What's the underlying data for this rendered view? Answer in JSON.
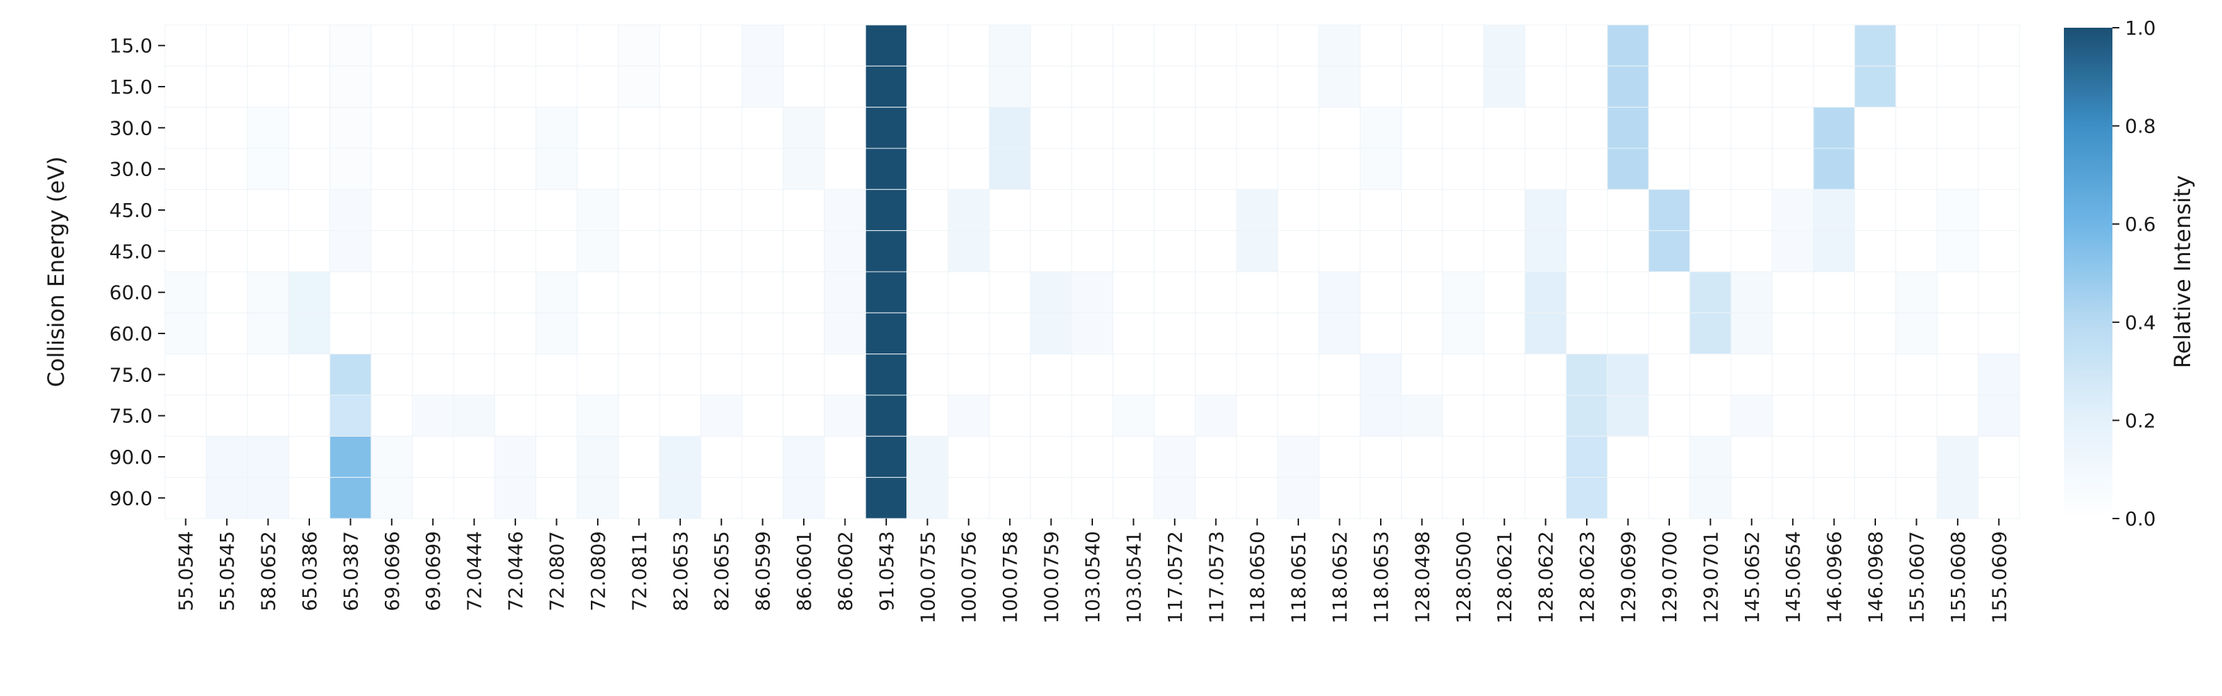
{
  "chart_data": {
    "type": "heatmap",
    "title": "",
    "xlabel": "",
    "ylabel": "Collision Energy (eV)",
    "colorbar_label": "Relative Intensity",
    "colorbar_ticks": [
      "0.0",
      "0.2",
      "0.4",
      "0.6",
      "0.8",
      "1.0"
    ],
    "value_range": [
      0,
      1
    ],
    "colors": {
      "low": "#ffffff",
      "mid": "#7fbfe6",
      "high": "#1b4f72",
      "grid": "#eef3f7"
    },
    "y_categories": [
      "15.0",
      "15.0",
      "30.0",
      "30.0",
      "45.0",
      "45.0",
      "60.0",
      "60.0",
      "75.0",
      "75.0",
      "90.0",
      "90.0"
    ],
    "x_categories": [
      "55.0544",
      "55.0545",
      "58.0652",
      "65.0386",
      "65.0387",
      "69.0696",
      "69.0699",
      "72.0444",
      "72.0446",
      "72.0807",
      "72.0809",
      "72.0811",
      "82.0653",
      "82.0655",
      "86.0599",
      "86.0601",
      "86.0602",
      "91.0543",
      "100.0755",
      "100.0756",
      "100.0758",
      "100.0759",
      "103.0540",
      "103.0541",
      "117.0572",
      "117.0573",
      "118.0650",
      "118.0651",
      "118.0652",
      "118.0653",
      "128.0498",
      "128.0500",
      "128.0621",
      "128.0622",
      "128.0623",
      "129.0699",
      "129.0700",
      "129.0701",
      "145.0652",
      "145.0654",
      "146.0966",
      "146.0968",
      "155.0607",
      "155.0608",
      "155.0609"
    ],
    "values": [
      [
        0,
        0,
        0,
        0,
        0.04,
        0,
        0,
        0,
        0,
        0,
        0,
        0.04,
        0,
        0,
        0.07,
        0,
        0,
        1.0,
        0,
        0,
        0.08,
        0,
        0,
        0,
        0,
        0,
        0,
        0,
        0.08,
        0,
        0,
        0,
        0.12,
        0,
        0,
        0.4,
        0,
        0,
        0,
        0,
        0,
        0.35,
        0,
        0,
        0
      ],
      [
        0,
        0,
        0,
        0,
        0.04,
        0,
        0,
        0,
        0,
        0,
        0,
        0.04,
        0,
        0,
        0.07,
        0,
        0,
        1.0,
        0,
        0,
        0.08,
        0,
        0,
        0,
        0,
        0,
        0,
        0,
        0.08,
        0,
        0,
        0,
        0.12,
        0,
        0,
        0.4,
        0,
        0,
        0,
        0,
        0,
        0.35,
        0,
        0,
        0
      ],
      [
        0,
        0,
        0.05,
        0,
        0.04,
        0,
        0,
        0,
        0,
        0.06,
        0,
        0,
        0,
        0,
        0,
        0.08,
        0,
        1.0,
        0,
        0,
        0.2,
        0,
        0,
        0,
        0,
        0,
        0,
        0,
        0,
        0.06,
        0,
        0,
        0,
        0,
        0,
        0.4,
        0,
        0,
        0,
        0,
        0.4,
        0,
        0,
        0,
        0
      ],
      [
        0,
        0,
        0.05,
        0,
        0.04,
        0,
        0,
        0,
        0,
        0.06,
        0,
        0,
        0,
        0,
        0,
        0.08,
        0,
        1.0,
        0,
        0,
        0.2,
        0,
        0,
        0,
        0,
        0,
        0,
        0,
        0,
        0.06,
        0,
        0,
        0,
        0,
        0,
        0.4,
        0,
        0,
        0,
        0,
        0.4,
        0,
        0,
        0,
        0
      ],
      [
        0,
        0,
        0,
        0,
        0.07,
        0,
        0,
        0,
        0,
        0,
        0.06,
        0,
        0,
        0,
        0,
        0,
        0.07,
        1.0,
        0,
        0.12,
        0,
        0,
        0,
        0,
        0,
        0,
        0.12,
        0,
        0,
        0,
        0,
        0,
        0,
        0.14,
        0,
        0,
        0.38,
        0,
        0,
        0.07,
        0.14,
        0,
        0,
        0.05,
        0
      ],
      [
        0,
        0,
        0,
        0,
        0.07,
        0,
        0,
        0,
        0,
        0,
        0.06,
        0,
        0,
        0,
        0,
        0,
        0.07,
        1.0,
        0,
        0.12,
        0,
        0,
        0,
        0,
        0,
        0,
        0.12,
        0,
        0,
        0,
        0,
        0,
        0,
        0.14,
        0,
        0,
        0.38,
        0,
        0,
        0.07,
        0.14,
        0,
        0,
        0.05,
        0
      ],
      [
        0.06,
        0,
        0.06,
        0.15,
        0,
        0,
        0,
        0,
        0,
        0.06,
        0,
        0,
        0,
        0,
        0,
        0,
        0.07,
        1.0,
        0,
        0,
        0,
        0.12,
        0.07,
        0,
        0,
        0,
        0,
        0,
        0.1,
        0,
        0,
        0.06,
        0,
        0.22,
        0,
        0,
        0,
        0.28,
        0.08,
        0,
        0,
        0,
        0.06,
        0,
        0
      ],
      [
        0.06,
        0,
        0.06,
        0.15,
        0,
        0,
        0,
        0,
        0,
        0.06,
        0,
        0,
        0,
        0,
        0,
        0,
        0.07,
        1.0,
        0,
        0,
        0,
        0.12,
        0.07,
        0,
        0,
        0,
        0,
        0,
        0.1,
        0,
        0,
        0.06,
        0,
        0.22,
        0,
        0,
        0,
        0.28,
        0.08,
        0,
        0,
        0,
        0.06,
        0,
        0
      ],
      [
        0,
        0,
        0,
        0,
        0.35,
        0,
        0,
        0,
        0,
        0,
        0,
        0,
        0,
        0,
        0,
        0,
        0,
        1.0,
        0,
        0,
        0,
        0,
        0,
        0,
        0,
        0,
        0,
        0,
        0,
        0.1,
        0,
        0,
        0,
        0,
        0.28,
        0.22,
        0,
        0,
        0,
        0,
        0,
        0,
        0,
        0,
        0.1
      ],
      [
        0,
        0,
        0,
        0,
        0.3,
        0,
        0.07,
        0.08,
        0,
        0,
        0.06,
        0,
        0,
        0.07,
        0,
        0,
        0.07,
        1.0,
        0,
        0.07,
        0,
        0,
        0,
        0.06,
        0,
        0.07,
        0,
        0,
        0,
        0.1,
        0.08,
        0,
        0,
        0,
        0.28,
        0.2,
        0,
        0,
        0.07,
        0,
        0,
        0,
        0,
        0,
        0.1
      ],
      [
        0,
        0.1,
        0.1,
        0,
        0.55,
        0.06,
        0,
        0,
        0.07,
        0,
        0.08,
        0,
        0.14,
        0,
        0,
        0.1,
        0,
        1.0,
        0.12,
        0,
        0,
        0,
        0,
        0,
        0.07,
        0,
        0,
        0.07,
        0,
        0,
        0,
        0,
        0,
        0,
        0.3,
        0,
        0,
        0.08,
        0,
        0,
        0,
        0,
        0,
        0.12,
        0
      ],
      [
        0,
        0.1,
        0.1,
        0,
        0.55,
        0.06,
        0,
        0,
        0.07,
        0,
        0.08,
        0,
        0.14,
        0,
        0,
        0.1,
        0,
        1.0,
        0.12,
        0,
        0,
        0,
        0,
        0,
        0.07,
        0,
        0,
        0.07,
        0,
        0,
        0,
        0,
        0,
        0,
        0.3,
        0,
        0,
        0.08,
        0,
        0,
        0,
        0,
        0,
        0.12,
        0
      ]
    ]
  }
}
